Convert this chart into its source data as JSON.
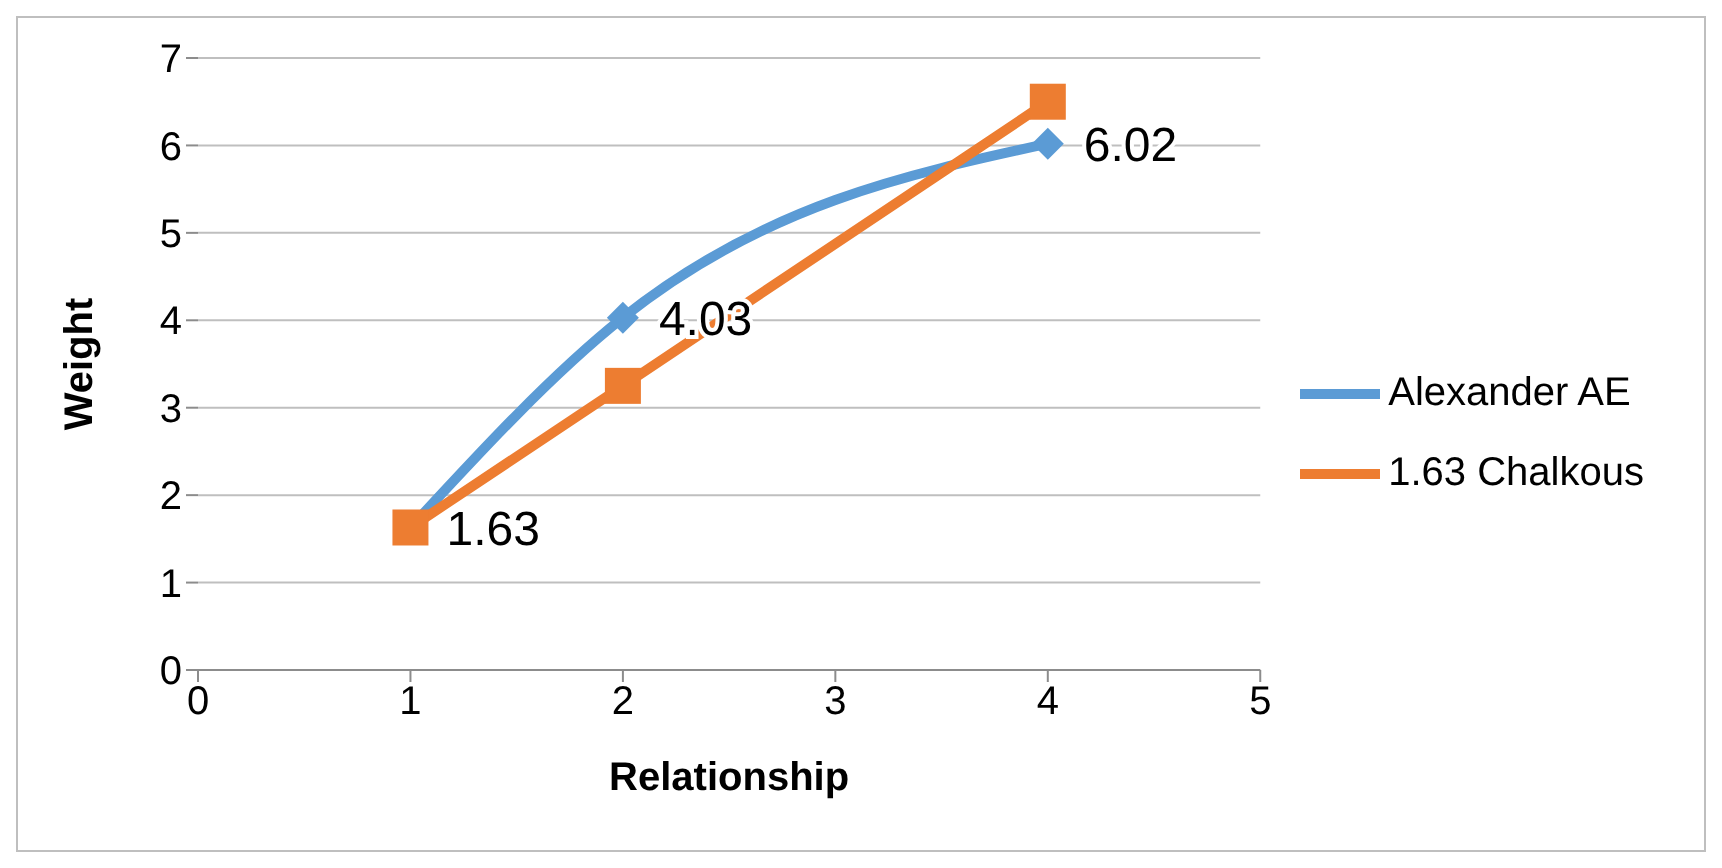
{
  "chart_data": {
    "type": "line",
    "xlabel": "Relationship",
    "ylabel": "Weight",
    "xlim": [
      0,
      5
    ],
    "xticks": [
      0,
      1,
      2,
      3,
      4,
      5
    ],
    "ylim": [
      0,
      7
    ],
    "yticks": [
      0,
      1,
      2,
      3,
      4,
      5,
      6,
      7
    ],
    "grid": "y",
    "legend": "right",
    "series": [
      {
        "name": "Alexander AE",
        "color": "#5b9bd5",
        "marker": "diamond",
        "x": [
          1,
          2,
          4
        ],
        "values": [
          1.63,
          4.03,
          6.02
        ],
        "value_labels": [
          "1.63",
          "4.03",
          "6.02"
        ]
      },
      {
        "name": "1.63 Chalkous",
        "color": "#ed7d31",
        "marker": "square",
        "x": [
          1,
          2,
          4
        ],
        "values": [
          1.63,
          3.25,
          6.5
        ],
        "value_labels": [
          null,
          null,
          null
        ]
      }
    ]
  }
}
